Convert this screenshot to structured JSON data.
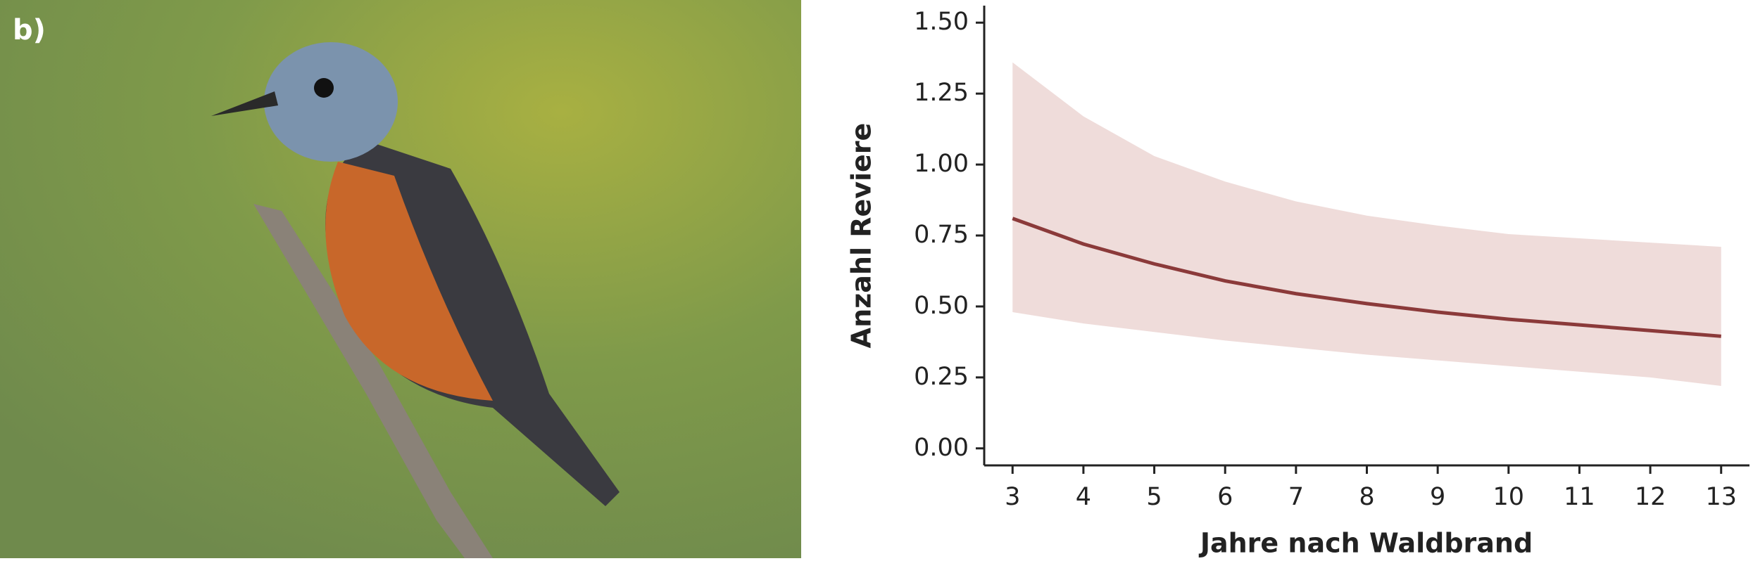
{
  "panel_label": "b)",
  "chart_data": {
    "type": "line",
    "x": [
      3,
      4,
      5,
      6,
      7,
      8,
      9,
      10,
      11,
      12,
      13
    ],
    "values": [
      0.81,
      0.72,
      0.65,
      0.59,
      0.545,
      0.51,
      0.48,
      0.455,
      0.435,
      0.415,
      0.395
    ],
    "band_lower": [
      0.48,
      0.44,
      0.41,
      0.38,
      0.355,
      0.33,
      0.31,
      0.29,
      0.27,
      0.25,
      0.22
    ],
    "band_upper": [
      1.36,
      1.17,
      1.03,
      0.94,
      0.87,
      0.82,
      0.785,
      0.755,
      0.74,
      0.725,
      0.71
    ],
    "color": "#8b3a3a",
    "band_color": "#efdcda",
    "xlabel": "Jahre nach Waldbrand",
    "ylabel": "Anzahl Reviere",
    "xlim": [
      2.6,
      13.4
    ],
    "ylim": [
      -0.06,
      1.56
    ],
    "xticks": [
      3,
      4,
      5,
      6,
      7,
      8,
      9,
      10,
      11,
      12,
      13
    ],
    "yticks": [
      {
        "value": 0,
        "label": "0.00"
      },
      {
        "value": 0.25,
        "label": "0.25"
      },
      {
        "value": 0.5,
        "label": "0.50"
      },
      {
        "value": 0.75,
        "label": "0.75"
      },
      {
        "value": 1,
        "label": "1.00"
      },
      {
        "value": 1.25,
        "label": "1.25"
      },
      {
        "value": 1.5,
        "label": "1.50"
      }
    ]
  }
}
